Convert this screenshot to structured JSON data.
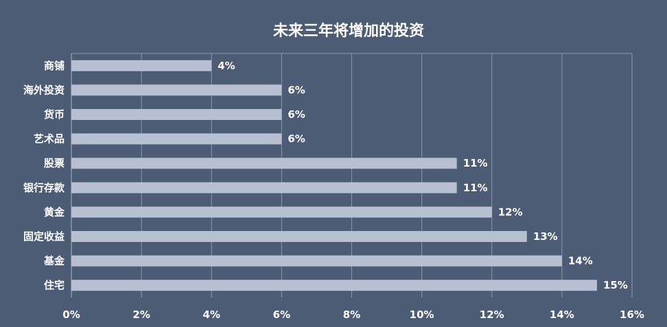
{
  "chart_data": {
    "type": "bar",
    "orientation": "horizontal",
    "title": "未来三年将增加的投资",
    "categories": [
      "商铺",
      "海外投资",
      "货币",
      "艺术品",
      "股票",
      "银行存款",
      "黄金",
      "固定收益",
      "基金",
      "住宅"
    ],
    "values": [
      4,
      6,
      6,
      6,
      11,
      11,
      12,
      13,
      14,
      15
    ],
    "value_labels": [
      "4%",
      "6%",
      "6%",
      "6%",
      "11%",
      "11%",
      "12%",
      "13%",
      "14%",
      "15%"
    ],
    "xlim": [
      0,
      16
    ],
    "x_ticks": [
      0,
      2,
      4,
      6,
      8,
      10,
      12,
      14,
      16
    ],
    "x_tick_labels": [
      "0%",
      "2%",
      "4%",
      "6%",
      "8%",
      "10%",
      "12%",
      "14%",
      "16%"
    ],
    "xlabel": "",
    "ylabel": "",
    "grid": true,
    "legend": "none",
    "colors": {
      "background": "#4c5c74",
      "bar": "#b6c0d0",
      "text": "#ffffff",
      "grid": "#8a98ad"
    }
  }
}
